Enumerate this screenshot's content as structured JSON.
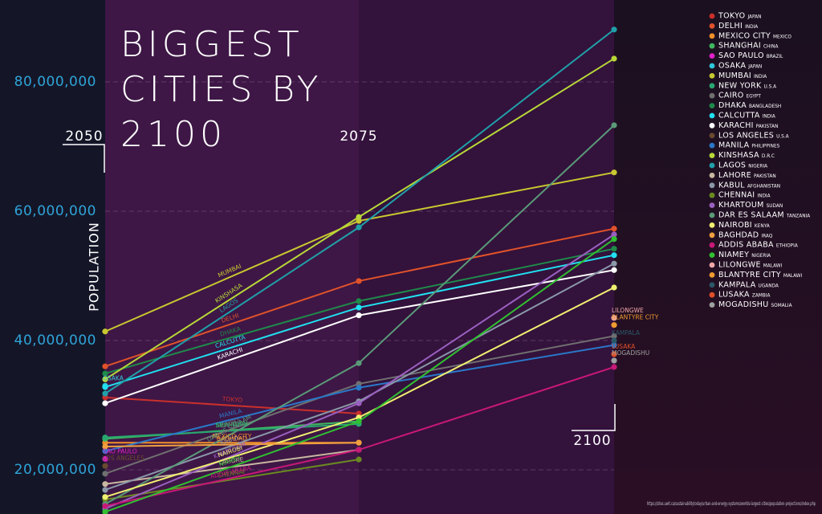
{
  "chart_data": {
    "type": "line",
    "title": "BIGGEST CITIES BY 2100",
    "y_label": "POPULATION",
    "source": "https://sites.uwit.ca/sustainabilitytoday/urban-and-energy-systems/worlds-largest-cities/population-projections/index.php",
    "categories": [
      "2050",
      "2075",
      "2100"
    ],
    "ylim": [
      13170000,
      92670000
    ],
    "yticks": [
      {
        "value": 20000000,
        "label": "20,000,000"
      },
      {
        "value": 40000000,
        "label": "40,000,000"
      },
      {
        "value": 60000000,
        "label": "60,000,000"
      },
      {
        "value": 80000000,
        "label": "80,000,000"
      }
    ],
    "grid": true,
    "series": [
      {
        "name": "TOKYO",
        "country": "JAPAN",
        "color": "#c9302c",
        "values": [
          31200000,
          28700000,
          null
        ]
      },
      {
        "name": "DELHI",
        "country": "INDIA",
        "color": "#e0522a",
        "values": [
          36000000,
          49200000,
          57300000
        ]
      },
      {
        "name": "MEXICO CITY",
        "country": "MEXICO",
        "color": "#f0902a",
        "values": [
          24200000,
          24200000,
          null
        ]
      },
      {
        "name": "SHANGHAI",
        "country": "CHINA",
        "color": "#3fb860",
        "values": [
          24800000,
          27500000,
          null
        ]
      },
      {
        "name": "SAO PAULO",
        "country": "BRAZIL",
        "color": "#e020c8",
        "values": [
          21700000,
          null,
          null
        ]
      },
      {
        "name": "OSAKA",
        "country": "JAPAN",
        "color": "#30c8d8",
        "values": [
          33000000,
          null,
          null
        ]
      },
      {
        "name": "MUMBAI",
        "country": "INDIA",
        "color": "#c8c830",
        "values": [
          41400000,
          58500000,
          66000000
        ]
      },
      {
        "name": "NEW YORK",
        "country": "U.S.A",
        "color": "#28a870",
        "values": [
          25000000,
          27100000,
          null
        ]
      },
      {
        "name": "CAIRO",
        "country": "EGYPT",
        "color": "#707070",
        "values": [
          19400000,
          33300000,
          40700000
        ]
      },
      {
        "name": "DHAKA",
        "country": "BANGLADESH",
        "color": "#1f8a4a",
        "values": [
          34900000,
          46100000,
          54200000
        ]
      },
      {
        "name": "CALCUTTA",
        "country": "INDIA",
        "color": "#20e0f0",
        "values": [
          32800000,
          45100000,
          53200000
        ]
      },
      {
        "name": "KARACHI",
        "country": "PAKISTAN",
        "color": "#ffffff",
        "values": [
          30300000,
          43900000,
          50900000
        ]
      },
      {
        "name": "LOS ANGELES",
        "country": "U.S.A",
        "color": "#6a4a30",
        "values": [
          20600000,
          null,
          null
        ]
      },
      {
        "name": "MANILA",
        "country": "PHILIPPINES",
        "color": "#2a78c8",
        "values": [
          22900000,
          32700000,
          39300000
        ]
      },
      {
        "name": "KINSHASA",
        "country": "D.R.C",
        "color": "#b8d838",
        "values": [
          34000000,
          59100000,
          83600000
        ]
      },
      {
        "name": "LAGOS",
        "country": "NIGERIA",
        "color": "#20a0a8",
        "values": [
          31800000,
          57500000,
          88100000
        ]
      },
      {
        "name": "LAHORE",
        "country": "PAKISTAN",
        "color": "#c8b8a0",
        "values": [
          17800000,
          23100000,
          null
        ]
      },
      {
        "name": "KABUL",
        "country": "AFGHANISTAN",
        "color": "#8a98a8",
        "values": [
          16900000,
          30600000,
          51900000
        ]
      },
      {
        "name": "CHENNAI",
        "country": "INDIA",
        "color": "#6a8a20",
        "values": [
          15400000,
          21600000,
          null
        ]
      },
      {
        "name": "KHARTOUM",
        "country": "SUDAN",
        "color": "#9a60c0",
        "values": [
          14000000,
          30300000,
          56400000
        ]
      },
      {
        "name": "DAR ES SALAAM",
        "country": "TANZANIA",
        "color": "#5a9a78",
        "values": [
          14700000,
          36500000,
          73300000
        ]
      },
      {
        "name": "NAIROBI",
        "country": "KENYA",
        "color": "#f0f070",
        "values": [
          15800000,
          28100000,
          48200000
        ]
      },
      {
        "name": "BAGHDAD",
        "country": "IRAQ",
        "color": "#f0a040",
        "values": [
          23600000,
          24200000,
          null
        ]
      },
      {
        "name": "ADDIS ABABA",
        "country": "ETHIOPIA",
        "color": "#c81878",
        "values": [
          14400000,
          23100000,
          35900000
        ]
      },
      {
        "name": "NIAMEY",
        "country": "NIGERIA",
        "color": "#30c030",
        "values": [
          13500000,
          27500000,
          55700000
        ]
      },
      {
        "name": "LILONGWE",
        "country": "MALAWI",
        "color": "#f0a8a8",
        "values": [
          null,
          null,
          43500000
        ]
      },
      {
        "name": "BLANTYRE CITY",
        "country": "MALAWI",
        "color": "#f09a30",
        "values": [
          null,
          null,
          42400000
        ]
      },
      {
        "name": "KAMPALA",
        "country": "UGANDA",
        "color": "#2a5868",
        "values": [
          null,
          null,
          40000000
        ]
      },
      {
        "name": "LUSAKA",
        "country": "ZAMBIA",
        "color": "#e05028",
        "values": [
          null,
          null,
          37900000
        ]
      },
      {
        "name": "MOGADISHU",
        "country": "SOMALIA",
        "color": "#a0a0a0",
        "values": [
          null,
          null,
          36900000
        ]
      }
    ]
  }
}
